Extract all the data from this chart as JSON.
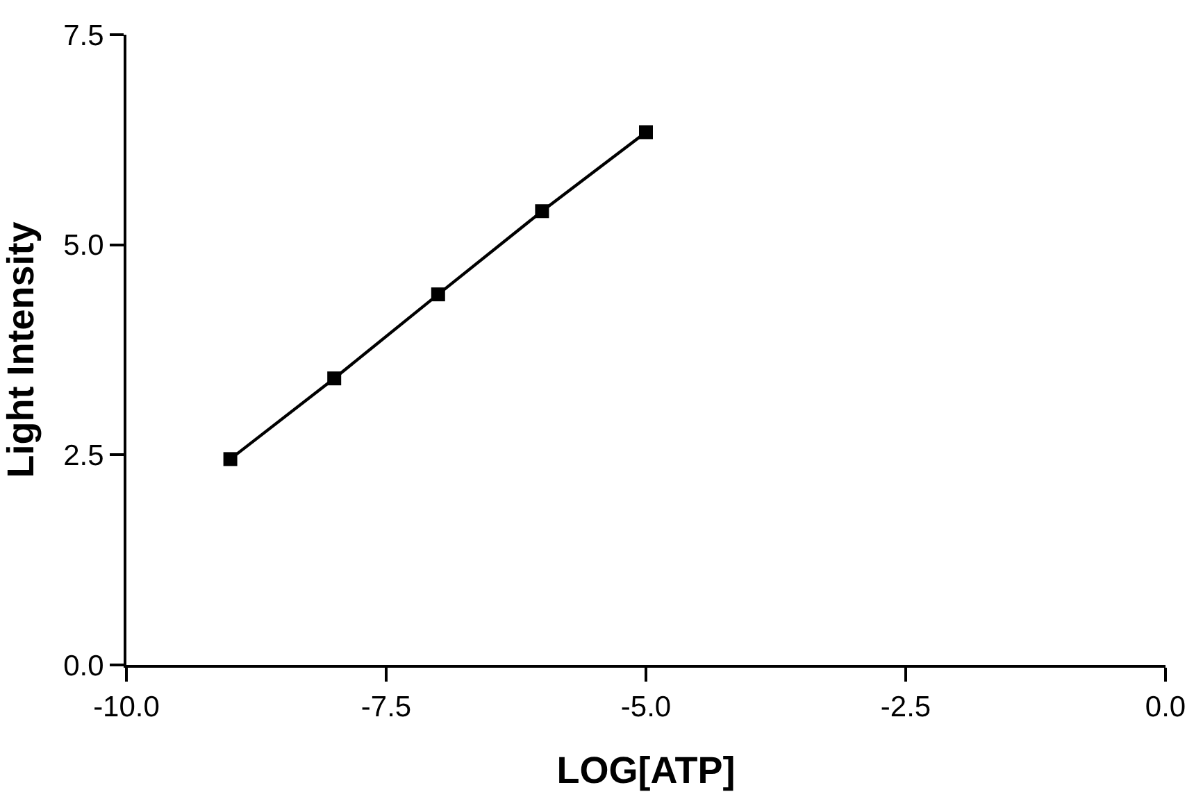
{
  "chart_data": {
    "type": "line",
    "xlabel": "LOG[ATP]",
    "ylabel": "Light Intensity",
    "x": [
      -9,
      -8,
      -7,
      -6,
      -5
    ],
    "series": [
      {
        "color": "#000000",
        "values": [
          2.45,
          3.41,
          4.41,
          5.4,
          6.34
        ]
      }
    ],
    "xlim": [
      -10,
      0
    ],
    "xticks": [
      {
        "value": -10,
        "label": "-10.0"
      },
      {
        "value": -7.5,
        "label": "-7.5"
      },
      {
        "value": -5,
        "label": "-5.0"
      },
      {
        "value": -2.5,
        "label": "-2.5"
      },
      {
        "value": 0,
        "label": "0.0"
      }
    ],
    "ylim": [
      0,
      7.5
    ],
    "yticks": [
      {
        "value": 0,
        "label": "0.0"
      },
      {
        "value": 2.5,
        "label": "2.5"
      },
      {
        "value": 5,
        "label": "5.0"
      },
      {
        "value": 7.5,
        "label": "7.5"
      }
    ],
    "marker": "square",
    "line_style": "solid"
  }
}
